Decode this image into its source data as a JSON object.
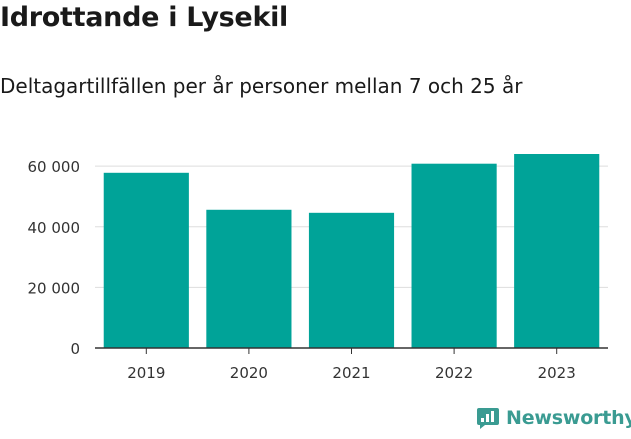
{
  "title": "Idrottande i Lysekil",
  "subtitle": "Deltagartillfällen per år personer mellan 7 och 25 år",
  "brand": {
    "name": "Newsworthy",
    "icon": "newsworthy-logo-icon"
  },
  "colors": {
    "bar": "#00a398",
    "grid": "#dddddd",
    "axis": "#333333",
    "brand": "#3a9b92"
  },
  "chart_data": {
    "type": "bar",
    "categories": [
      "2019",
      "2020",
      "2021",
      "2022",
      "2023"
    ],
    "values": [
      57800,
      45600,
      44600,
      60800,
      64000
    ],
    "yticks": [
      0,
      20000,
      40000,
      60000
    ],
    "ytick_labels": [
      "0",
      "20 000",
      "40 000",
      "60 000"
    ],
    "ylim": [
      0,
      64000
    ],
    "grid": true,
    "legend": "none",
    "xlabel": "",
    "ylabel": ""
  }
}
